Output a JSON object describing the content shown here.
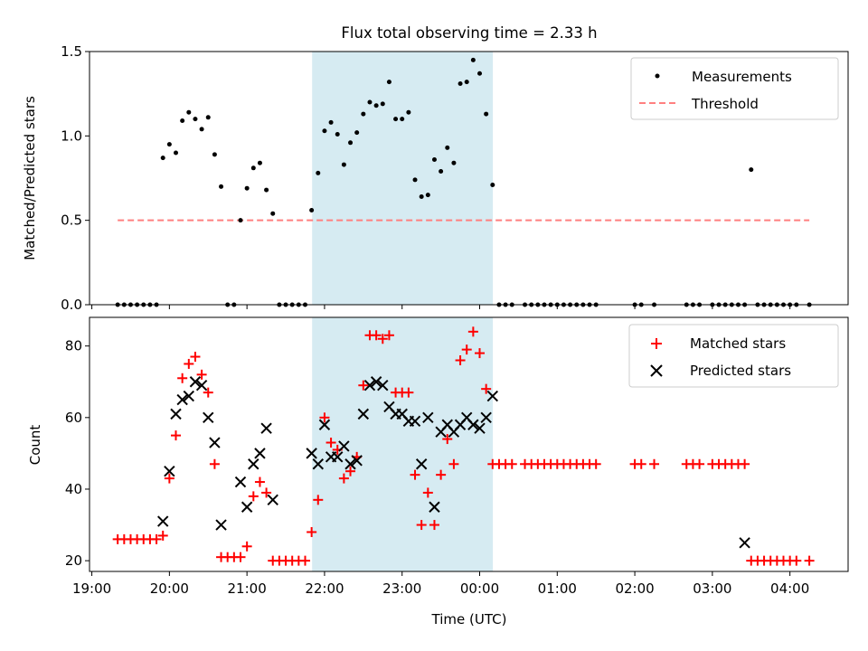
{
  "figure": {
    "title": "Flux total observing time = 2.33 h",
    "xlabel": "Time (UTC)",
    "x_ticks": [
      "19:00",
      "20:00",
      "21:00",
      "22:00",
      "23:00",
      "00:00",
      "01:00",
      "02:00",
      "03:00",
      "04:00"
    ],
    "x_tick_hours": [
      19,
      20,
      21,
      22,
      23,
      24,
      25,
      26,
      27,
      28
    ],
    "xlim": [
      18.97,
      28.75
    ],
    "shade_span": [
      21.84,
      24.17
    ],
    "shade_color": "#add8e6"
  },
  "chart_data": [
    {
      "type": "scatter",
      "ylabel": "Matched/Predicted stars",
      "ylim": [
        0,
        1.5
      ],
      "y_ticks": [
        "0.0",
        "0.5",
        "1.0",
        "1.5"
      ],
      "y_tick_values": [
        0,
        0.5,
        1.0,
        1.5
      ],
      "legend": {
        "placement": "upper right",
        "entries": [
          "Measurements",
          "Threshold"
        ]
      },
      "series": [
        {
          "name": "Measurements",
          "marker": "dot",
          "color": "#000000",
          "x": [
            "19:20",
            "19:25",
            "19:30",
            "19:35",
            "19:40",
            "19:45",
            "19:50",
            "19:55",
            "20:00",
            "20:05",
            "20:10",
            "20:15",
            "20:20",
            "20:25",
            "20:30",
            "20:35",
            "20:40",
            "20:45",
            "20:50",
            "20:55",
            "21:00",
            "21:05",
            "21:10",
            "21:15",
            "21:20",
            "21:25",
            "21:30",
            "21:35",
            "21:40",
            "21:45",
            "21:50",
            "21:55",
            "22:00",
            "22:05",
            "22:10",
            "22:15",
            "22:20",
            "22:25",
            "22:30",
            "22:35",
            "22:40",
            "22:45",
            "22:50",
            "22:55",
            "23:00",
            "23:05",
            "23:10",
            "23:15",
            "23:20",
            "23:25",
            "23:30",
            "23:35",
            "23:40",
            "23:45",
            "23:50",
            "23:55",
            "00:00",
            "00:05",
            "00:10",
            "00:15",
            "00:20",
            "00:25",
            "00:35",
            "00:40",
            "00:45",
            "00:50",
            "00:55",
            "01:00",
            "01:05",
            "01:10",
            "01:15",
            "01:20",
            "01:25",
            "01:30",
            "02:00",
            "02:05",
            "02:15",
            "02:40",
            "02:45",
            "02:50",
            "03:00",
            "03:05",
            "03:10",
            "03:15",
            "03:20",
            "03:25",
            "03:30",
            "03:35",
            "03:40",
            "03:45",
            "03:50",
            "03:55",
            "04:00",
            "04:05",
            "04:15"
          ],
          "values": [
            0,
            0,
            0,
            0,
            0,
            0,
            0,
            0.87,
            0.95,
            0.9,
            1.09,
            1.14,
            1.1,
            1.04,
            1.11,
            0.89,
            0.7,
            0,
            0,
            0.5,
            0.69,
            0.81,
            0.84,
            0.68,
            0.54,
            0,
            0,
            0,
            0,
            0,
            0.56,
            0.78,
            1.03,
            1.08,
            1.01,
            0.83,
            0.96,
            1.02,
            1.13,
            1.2,
            1.18,
            1.19,
            1.32,
            1.1,
            1.1,
            1.14,
            0.74,
            0.64,
            0.65,
            0.86,
            0.79,
            0.93,
            0.84,
            1.31,
            1.32,
            1.45,
            1.37,
            1.13,
            0.71,
            0,
            0,
            0,
            0,
            0,
            0,
            0,
            0,
            0,
            0,
            0,
            0,
            0,
            0,
            0,
            0,
            0,
            0,
            0,
            0,
            0,
            0,
            0,
            0,
            0,
            0,
            0,
            0.8,
            0,
            0,
            0,
            0,
            0,
            0,
            0,
            0
          ]
        },
        {
          "name": "Threshold",
          "style": "dashed",
          "color": "#ff7f7f",
          "x": [
            "19:20",
            "04:15"
          ],
          "values": [
            0.5,
            0.5
          ]
        }
      ]
    },
    {
      "type": "scatter",
      "ylabel": "Count",
      "ylim": [
        17,
        88
      ],
      "y_ticks": [
        "20",
        "40",
        "60",
        "80"
      ],
      "y_tick_values": [
        20,
        40,
        60,
        80
      ],
      "legend": {
        "placement": "upper right",
        "entries": [
          "Matched stars",
          "Predicted stars"
        ]
      },
      "series": [
        {
          "name": "Matched stars",
          "marker": "plus",
          "color": "#ff0000",
          "x": [
            "19:20",
            "19:25",
            "19:30",
            "19:35",
            "19:40",
            "19:45",
            "19:50",
            "19:55",
            "20:00",
            "20:05",
            "20:10",
            "20:15",
            "20:20",
            "20:25",
            "20:30",
            "20:35",
            "20:40",
            "20:45",
            "20:50",
            "20:55",
            "21:00",
            "21:05",
            "21:10",
            "21:15",
            "21:20",
            "21:25",
            "21:30",
            "21:35",
            "21:40",
            "21:45",
            "21:50",
            "21:55",
            "22:00",
            "22:05",
            "22:10",
            "22:15",
            "22:20",
            "22:25",
            "22:30",
            "22:35",
            "22:40",
            "22:45",
            "22:50",
            "22:55",
            "23:00",
            "23:05",
            "23:10",
            "23:15",
            "23:20",
            "23:25",
            "23:30",
            "23:35",
            "23:40",
            "23:45",
            "23:50",
            "23:55",
            "00:00",
            "00:05",
            "00:10",
            "00:15",
            "00:20",
            "00:25",
            "00:35",
            "00:40",
            "00:45",
            "00:50",
            "00:55",
            "01:00",
            "01:05",
            "01:10",
            "01:15",
            "01:20",
            "01:25",
            "01:30",
            "02:00",
            "02:05",
            "02:15",
            "02:40",
            "02:45",
            "02:50",
            "03:00",
            "03:05",
            "03:10",
            "03:15",
            "03:20",
            "03:25",
            "03:30",
            "03:35",
            "03:40",
            "03:45",
            "03:50",
            "03:55",
            "04:00",
            "04:05",
            "04:15"
          ],
          "values": [
            26,
            26,
            26,
            26,
            26,
            26,
            26,
            27,
            43,
            55,
            71,
            75,
            77,
            72,
            67,
            47,
            21,
            21,
            21,
            21,
            24,
            38,
            42,
            39,
            20,
            20,
            20,
            20,
            20,
            20,
            28,
            37,
            60,
            53,
            51,
            43,
            45,
            49,
            69,
            83,
            83,
            82,
            83,
            67,
            67,
            67,
            44,
            30,
            39,
            30,
            44,
            54,
            47,
            76,
            79,
            84,
            78,
            68,
            47,
            47,
            47,
            47,
            47,
            47,
            47,
            47,
            47,
            47,
            47,
            47,
            47,
            47,
            47,
            47,
            47,
            47,
            47,
            47,
            47,
            47,
            47,
            47,
            47,
            47,
            47,
            47,
            20,
            20,
            20,
            20,
            20,
            20,
            20,
            20,
            20
          ]
        },
        {
          "name": "Predicted stars",
          "marker": "x",
          "color": "#000000",
          "x": [
            "19:55",
            "20:00",
            "20:05",
            "20:10",
            "20:15",
            "20:20",
            "20:25",
            "20:30",
            "20:35",
            "20:40",
            "20:55",
            "21:00",
            "21:05",
            "21:10",
            "21:15",
            "21:20",
            "21:50",
            "21:55",
            "22:00",
            "22:05",
            "22:10",
            "22:15",
            "22:20",
            "22:25",
            "22:30",
            "22:35",
            "22:40",
            "22:45",
            "22:50",
            "22:55",
            "23:00",
            "23:05",
            "23:10",
            "23:15",
            "23:20",
            "23:25",
            "23:30",
            "23:35",
            "23:40",
            "23:45",
            "23:50",
            "23:55",
            "00:00",
            "00:05",
            "00:10",
            "03:25"
          ],
          "values": [
            31,
            45,
            61,
            65,
            66,
            70,
            69,
            60,
            53,
            30,
            42,
            35,
            47,
            50,
            57,
            37,
            50,
            47,
            58,
            49,
            49,
            52,
            47,
            48,
            61,
            69,
            70,
            69,
            63,
            61,
            61,
            59,
            59,
            47,
            60,
            35,
            56,
            58,
            56,
            58,
            60,
            58,
            57,
            60,
            66,
            25
          ]
        }
      ]
    }
  ]
}
